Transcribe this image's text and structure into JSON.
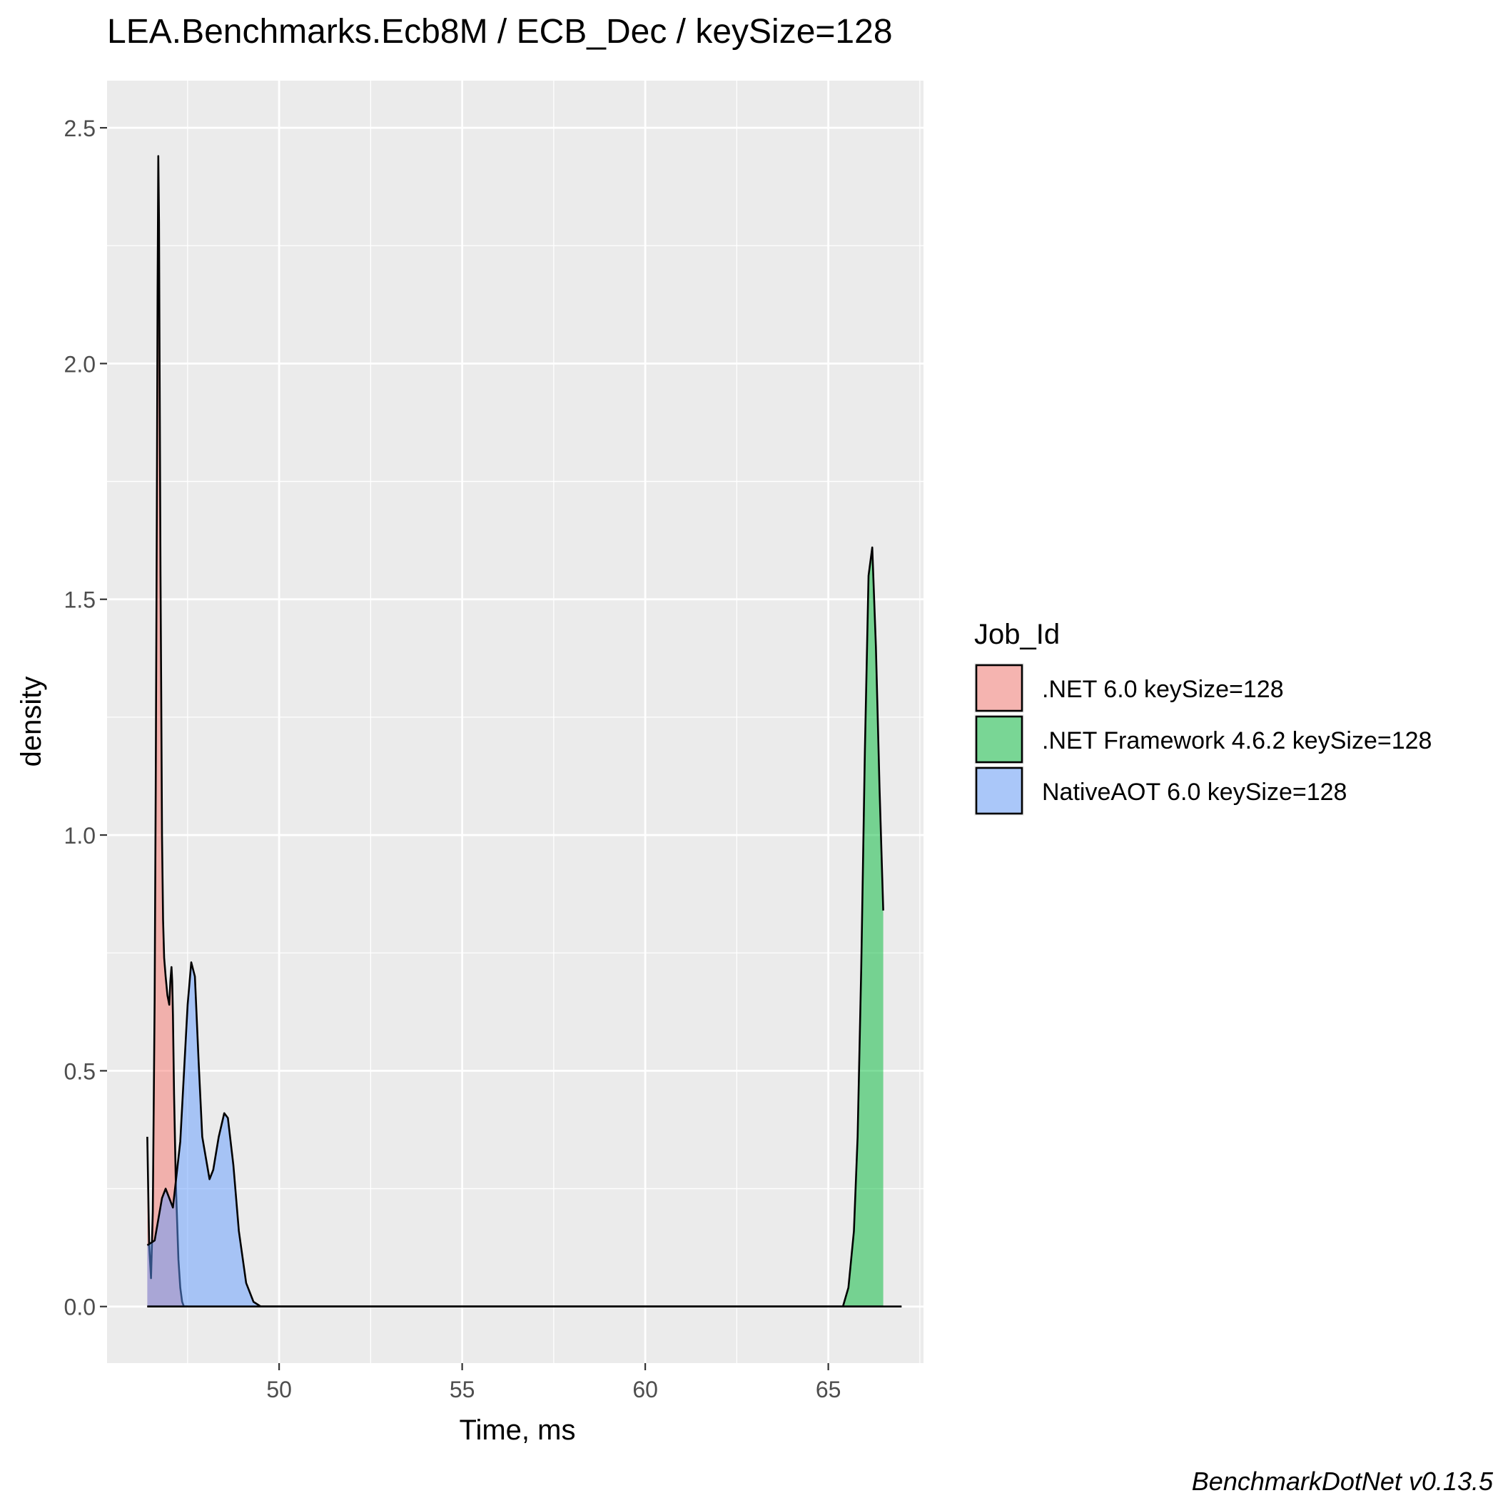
{
  "chart_data": {
    "type": "area",
    "title": "LEA.Benchmarks.Ecb8M / ECB_Dec / keySize=128",
    "xlabel": "Time, ms",
    "ylabel": "density",
    "xlim": [
      45.3,
      67.6
    ],
    "ylim": [
      -0.12,
      2.6
    ],
    "x_ticks": [
      50,
      55,
      60,
      65
    ],
    "y_ticks": [
      0.0,
      0.5,
      1.0,
      1.5,
      2.0,
      2.5
    ],
    "x_tick_labels": [
      "50",
      "55",
      "60",
      "65"
    ],
    "y_tick_labels": [
      "0.0",
      "0.5",
      "1.0",
      "1.5",
      "2.0",
      "2.5"
    ],
    "grid": true,
    "legend": {
      "title": "Job_Id",
      "position": "right"
    },
    "series": [
      {
        "name": ".NET 6.0 keySize=128",
        "color": "#F8766D",
        "x": [
          46.4,
          46.45,
          46.5,
          46.55,
          46.6,
          46.63,
          46.66,
          46.68,
          46.7,
          46.72,
          46.74,
          46.76,
          46.78,
          46.8,
          46.83,
          46.86,
          46.9,
          46.95,
          47.0,
          47.03,
          47.06,
          47.08,
          47.1,
          47.13,
          47.18,
          47.25,
          47.3,
          47.35,
          47.4,
          47.45,
          47.5
        ],
        "y": [
          0.36,
          0.13,
          0.06,
          0.2,
          0.65,
          1.1,
          1.7,
          2.15,
          2.44,
          2.3,
          1.9,
          1.55,
          1.3,
          1.0,
          0.82,
          0.74,
          0.7,
          0.66,
          0.64,
          0.69,
          0.72,
          0.69,
          0.62,
          0.45,
          0.26,
          0.1,
          0.04,
          0.01,
          0.0,
          0.0,
          0.0
        ]
      },
      {
        "name": ".NET Framework 4.6.2 keySize=128",
        "color": "#00BA38",
        "x": [
          46.4,
          65.0,
          65.4,
          65.55,
          65.7,
          65.8,
          65.9,
          66.0,
          66.1,
          66.2,
          66.3,
          66.4,
          66.5
        ],
        "y": [
          0.0,
          0.0,
          0.0,
          0.04,
          0.16,
          0.36,
          0.72,
          1.18,
          1.55,
          1.61,
          1.4,
          1.1,
          0.84
        ]
      },
      {
        "name": "NativeAOT 6.0 keySize=128",
        "color": "#619CFF",
        "x": [
          46.4,
          46.6,
          46.8,
          46.9,
          47.0,
          47.1,
          47.3,
          47.5,
          47.6,
          47.7,
          47.8,
          47.9,
          48.1,
          48.2,
          48.35,
          48.5,
          48.6,
          48.75,
          48.9,
          49.1,
          49.3,
          49.5,
          67.0
        ],
        "y": [
          0.13,
          0.14,
          0.23,
          0.25,
          0.23,
          0.21,
          0.35,
          0.64,
          0.73,
          0.7,
          0.52,
          0.36,
          0.27,
          0.29,
          0.36,
          0.41,
          0.4,
          0.3,
          0.16,
          0.05,
          0.01,
          0.0,
          0.0
        ]
      }
    ]
  },
  "footer": {
    "caption": "BenchmarkDotNet v0.13.5"
  }
}
